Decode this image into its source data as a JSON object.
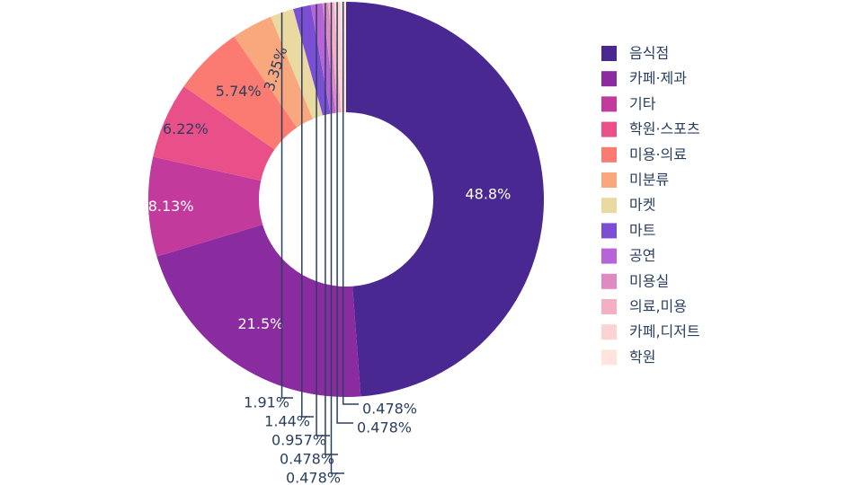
{
  "chart_data": {
    "type": "pie",
    "hole": true,
    "direction": "clockwise",
    "start": "top",
    "legend_position": "right",
    "categories": [
      "음식점",
      "카페·제과",
      "기타",
      "학원·스포츠",
      "미용·의료",
      "미분류",
      "마켓",
      "마트",
      "공연",
      "미용실",
      "의료,미용",
      "카페,디저트",
      "학원"
    ],
    "values": [
      48.8,
      21.5,
      8.13,
      6.22,
      5.74,
      3.35,
      1.91,
      1.44,
      0.957,
      0.478,
      0.478,
      0.478,
      0.478
    ],
    "labels": [
      "48.8%",
      "21.5%",
      "8.13%",
      "6.22%",
      "5.74%",
      "3.35%",
      "1.91%",
      "1.44%",
      "0.957%",
      "0.478%",
      "0.478%",
      "0.478%",
      "0.478%"
    ],
    "colors": [
      "#4a2891",
      "#8a2ba0",
      "#c23a9c",
      "#e9508a",
      "#fb7a72",
      "#f9a77c",
      "#ead9a0",
      "#7b4fd4",
      "#b863d8",
      "#e08ac4",
      "#f4afc4",
      "#fbd3d3",
      "#fde4dc"
    ],
    "label_colors": [
      "#ffffff",
      "#ffffff",
      "#ffffff",
      "#2a3f5f",
      "#2a3f5f",
      "#2a3f5f",
      "#2a3f5f",
      "#2a3f5f",
      "#2a3f5f",
      "#2a3f5f",
      "#2a3f5f",
      "#2a3f5f",
      "#2a3f5f"
    ]
  }
}
